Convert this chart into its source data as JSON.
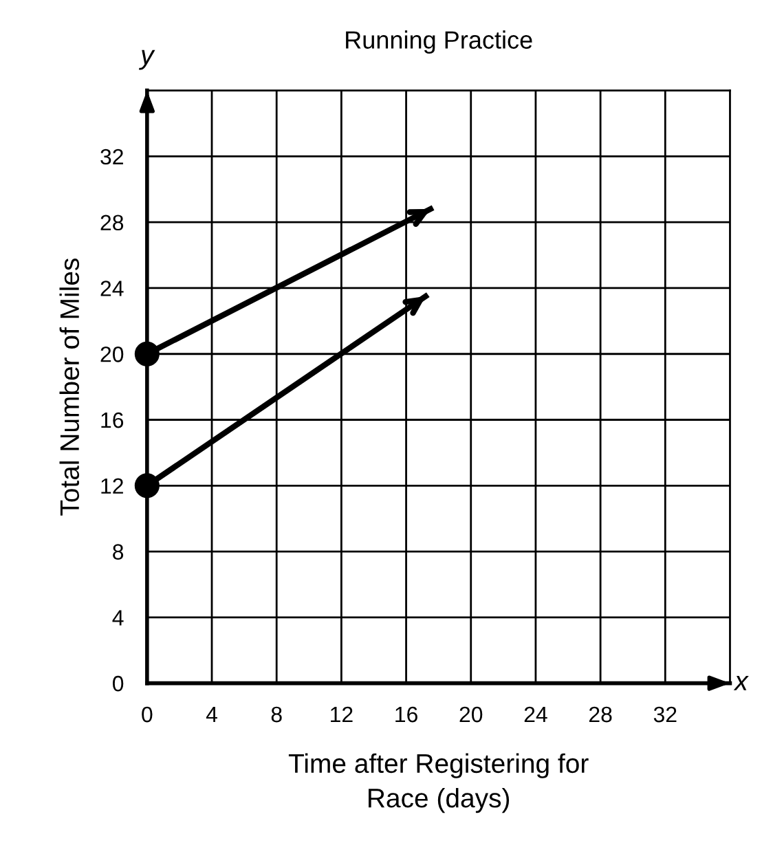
{
  "chart_data": {
    "type": "line",
    "title": "Running Practice",
    "xlabel": "Time after Registering for\nRace (days)",
    "ylabel": "Total Number of Miles",
    "annotations": [
      "x",
      "y"
    ],
    "series": [
      {
        "x": [
          0,
          17.5
        ],
        "values": [
          20,
          28.8
        ],
        "color": "#000000"
      },
      {
        "x": [
          0,
          17.2
        ],
        "values": [
          12,
          23.5
        ],
        "color": "#000000"
      }
    ],
    "xlim": [
      0,
      36
    ],
    "ylim": [
      0,
      36
    ],
    "xticks": [
      0,
      4,
      8,
      12,
      16,
      20,
      24,
      28,
      32
    ],
    "yticks": [
      0,
      4,
      8,
      12,
      16,
      20,
      24,
      28,
      32
    ],
    "grid": true,
    "marker": "circle",
    "line_style": "solid"
  }
}
